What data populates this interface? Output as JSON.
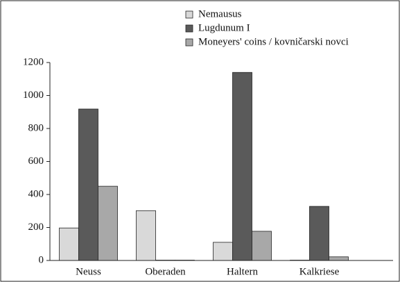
{
  "chart_data": {
    "type": "bar",
    "categories": [
      "Neuss",
      "Oberaden",
      "Haltern",
      "Kalkriese"
    ],
    "series": [
      {
        "name": "Nemausus",
        "color": "#d9d9d9",
        "values": [
          197,
          302,
          110,
          2
        ]
      },
      {
        "name": "Lugdunum I",
        "color": "#5a5a5a",
        "values": [
          918,
          2,
          1140,
          328
        ]
      },
      {
        "name": "Moneyers' coins / kovničarski novci",
        "color": "#a8a8a8",
        "values": [
          450,
          2,
          177,
          22
        ]
      }
    ],
    "ylim": [
      0,
      1200
    ],
    "yticks": [
      0,
      200,
      400,
      600,
      800,
      1000,
      1200
    ],
    "legend": "top"
  }
}
